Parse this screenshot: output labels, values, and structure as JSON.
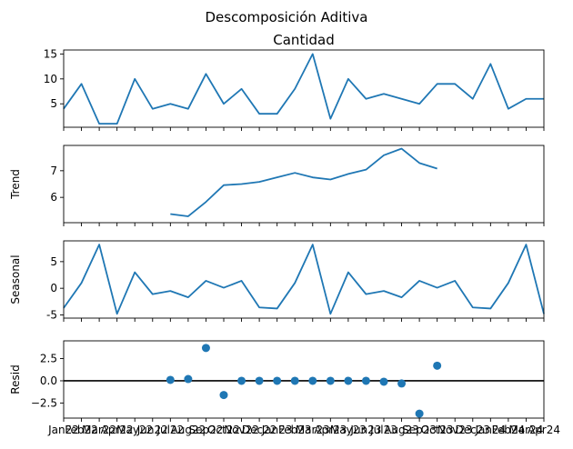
{
  "chart_data": [
    {
      "type": "line",
      "suptitle": "Descomposición Aditiva",
      "title": "Cantidad",
      "ylabel": "",
      "color": "#1f77b4",
      "ylim": [
        0.3,
        15.8
      ],
      "yticks": [
        5,
        10,
        15
      ],
      "x": [
        "Jan22",
        "Feb22",
        "Mar22",
        "Apr22",
        "May22",
        "Jun22",
        "Jul22",
        "Aug22",
        "Sep22",
        "Oct22",
        "Nov22",
        "Dec22",
        "Jan23",
        "Feb23",
        "Mar23",
        "Apr23",
        "May23",
        "Jun23",
        "Jul23",
        "Aug23",
        "Sep23",
        "Oct23",
        "Nov23",
        "Dec23",
        "Jan24",
        "Feb24",
        "Mar24",
        "Apr24"
      ],
      "values": [
        4,
        9,
        1,
        1,
        10,
        4,
        5,
        4,
        11,
        5,
        8,
        3,
        3,
        8,
        15,
        2,
        10,
        6,
        7,
        6,
        5,
        9,
        9,
        6,
        13,
        4,
        6,
        6
      ]
    },
    {
      "type": "line",
      "title": "",
      "ylabel": "Trend",
      "color": "#1f77b4",
      "ylim": [
        5.05,
        7.95
      ],
      "yticks": [
        6,
        7
      ],
      "values": [
        null,
        null,
        null,
        null,
        null,
        null,
        5.375,
        5.29,
        5.83,
        6.46,
        6.5,
        6.58,
        6.75,
        6.92,
        6.75,
        6.67,
        6.88,
        7.04,
        7.58,
        7.83,
        7.29,
        7.08,
        null,
        null,
        null,
        null,
        null,
        null
      ]
    },
    {
      "type": "line",
      "title": "",
      "ylabel": "Seasonal",
      "color": "#1f77b4",
      "ylim": [
        -5.6,
        8.9
      ],
      "yticks": [
        -5,
        0,
        5
      ],
      "values": [
        -3.7,
        1.0,
        8.2,
        -4.8,
        3.0,
        -1.1,
        -0.5,
        -1.7,
        1.4,
        0.1,
        1.4,
        -3.6,
        -3.8,
        1.0,
        8.2,
        -4.8,
        3.0,
        -1.1,
        -0.5,
        -1.7,
        1.4,
        0.1,
        1.4,
        -3.6,
        -3.8,
        1.0,
        8.2,
        -4.8
      ]
    },
    {
      "type": "scatter",
      "title": "",
      "ylabel": "Resid",
      "color": "#1f77b4",
      "ylim": [
        -4.2,
        4.5
      ],
      "yticks": [
        -2.5,
        0.0,
        2.5
      ],
      "ytick_labels": [
        "−2.5",
        "0.0",
        "2.5"
      ],
      "zero_line": true,
      "values": [
        null,
        null,
        null,
        null,
        null,
        null,
        0.1,
        0.2,
        3.7,
        -1.6,
        0.0,
        0.0,
        0.0,
        0.0,
        0.0,
        0.0,
        0.0,
        0.0,
        -0.1,
        -0.3,
        -3.7,
        1.7,
        null,
        null,
        null,
        null,
        null,
        null
      ]
    }
  ]
}
